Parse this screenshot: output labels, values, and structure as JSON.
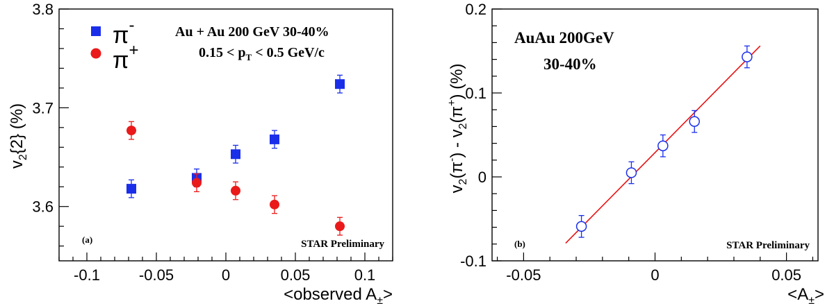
{
  "chart_data": [
    {
      "type": "scatter",
      "panel_label": "(a)",
      "xlabel_main": "<observed A",
      "xlabel_sub": "±",
      "xlabel_end": ">",
      "ylabel_pre": "v",
      "ylabel_sub": "2",
      "ylabel_post": "{2} (%)",
      "xlim": [
        -0.12,
        0.12
      ],
      "ylim": [
        3.545,
        3.8
      ],
      "xticks": [
        -0.1,
        -0.05,
        0,
        0.05,
        0.1
      ],
      "xtick_labels": [
        "-0.1",
        "-0.05",
        "0",
        "0.05",
        "0.1"
      ],
      "yticks": [
        3.6,
        3.7,
        3.8
      ],
      "ytick_labels": [
        "3.6",
        "3.7",
        "3.8"
      ],
      "annotation_line1": "Au + Au 200 GeV 30-40%",
      "annotation_line2_pre": "0.15 < p",
      "annotation_line2_sub": "T",
      "annotation_line2_post": " < 0.5 GeV/c",
      "watermark": "STAR Preliminary",
      "series": [
        {
          "name": "π-",
          "name_base": "π",
          "name_sup": "-",
          "color": "#1a2eea",
          "marker": "square",
          "x": [
            -0.068,
            -0.021,
            0.007,
            0.035,
            0.082
          ],
          "y": [
            3.618,
            3.629,
            3.653,
            3.668,
            3.724
          ],
          "err": [
            0.009,
            0.009,
            0.009,
            0.009,
            0.009
          ]
        },
        {
          "name": "π+",
          "name_base": "π",
          "name_sup": "+",
          "color": "#ea1a1a",
          "marker": "circle",
          "x": [
            -0.068,
            -0.021,
            0.007,
            0.035,
            0.082
          ],
          "y": [
            3.677,
            3.624,
            3.616,
            3.602,
            3.58
          ],
          "err": [
            0.009,
            0.009,
            0.009,
            0.009,
            0.009
          ]
        }
      ]
    },
    {
      "type": "scatter",
      "panel_label": "(b)",
      "xlabel_main": "<A",
      "xlabel_sub": "±",
      "xlabel_end": ">",
      "ylabel_parts": [
        "v",
        "2",
        "(π",
        "-",
        ") - v",
        "2",
        "(π",
        "+",
        ") (%)"
      ],
      "xlim": [
        -0.062,
        0.062
      ],
      "ylim": [
        -0.1,
        0.2
      ],
      "xticks": [
        -0.05,
        0,
        0.05
      ],
      "xtick_labels": [
        "-0.05",
        "0",
        "0.05"
      ],
      "yticks": [
        -0.1,
        0,
        0.1,
        0.2
      ],
      "ytick_labels": [
        "-0.1",
        "0",
        "0.1",
        "0.2"
      ],
      "annotation_line1": "AuAu 200GeV",
      "annotation_line2": "30-40%",
      "watermark": "STAR Preliminary",
      "series": [
        {
          "color": "#1a2eea",
          "marker": "open-circle",
          "x": [
            -0.028,
            -0.009,
            0.003,
            0.015,
            0.035
          ],
          "y": [
            -0.059,
            0.005,
            0.037,
            0.066,
            0.143
          ],
          "err": [
            0.013,
            0.013,
            0.013,
            0.013,
            0.013
          ]
        }
      ],
      "fit": {
        "color": "#e81010",
        "x": [
          -0.034,
          0.04
        ],
        "y": [
          -0.079,
          0.156
        ]
      }
    }
  ]
}
